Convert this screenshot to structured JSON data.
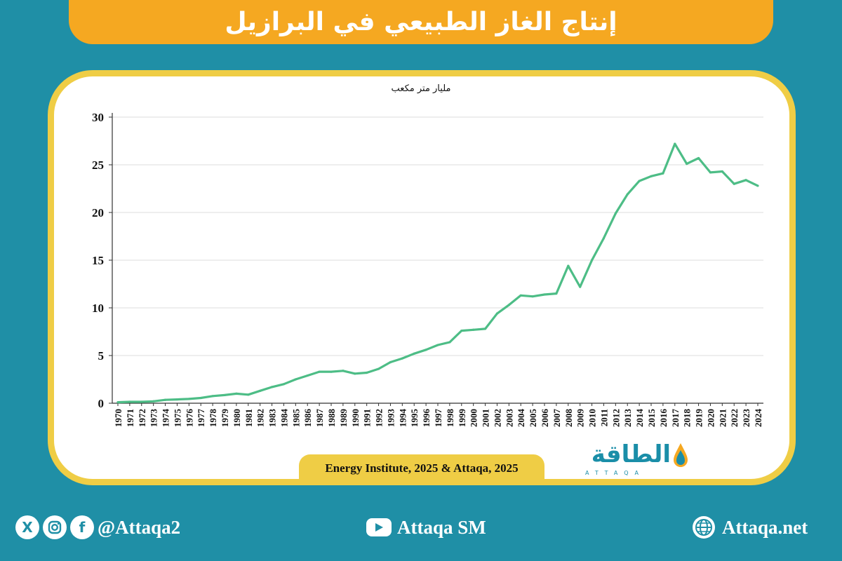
{
  "header": {
    "title": "إنتاج الغاز الطبيعي في البرازيل"
  },
  "chart_data": {
    "type": "line",
    "unit_label": "مليار متر مكعب",
    "x": [
      "1970",
      "1971",
      "1972",
      "1973",
      "1974",
      "1975",
      "1976",
      "1977",
      "1978",
      "1979",
      "1980",
      "1981",
      "1982",
      "1983",
      "1984",
      "1985",
      "1986",
      "1987",
      "1988",
      "1989",
      "1990",
      "1991",
      "1992",
      "1993",
      "1994",
      "1995",
      "1996",
      "1997",
      "1998",
      "1999",
      "2000",
      "2001",
      "2002",
      "2003",
      "2004",
      "2005",
      "2006",
      "2007",
      "2008",
      "2009",
      "2010",
      "2011",
      "2012",
      "2013",
      "2014",
      "2015",
      "2016",
      "2017",
      "2018",
      "2019",
      "2020",
      "2021",
      "2022",
      "2023",
      "2024"
    ],
    "series": [
      {
        "values": [
          0.1,
          0.15,
          0.15,
          0.2,
          0.35,
          0.4,
          0.45,
          0.55,
          0.75,
          0.85,
          1.0,
          0.9,
          1.3,
          1.7,
          2.0,
          2.5,
          2.9,
          3.3,
          3.3,
          3.4,
          3.1,
          3.2,
          3.6,
          4.3,
          4.7,
          5.2,
          5.6,
          6.1,
          6.4,
          7.6,
          7.7,
          7.8,
          9.4,
          10.3,
          11.3,
          11.2,
          11.4,
          11.5,
          14.4,
          12.2,
          15.0,
          17.3,
          19.9,
          21.9,
          23.3,
          23.8,
          24.1,
          27.2,
          25.1,
          25.7,
          24.2,
          24.3,
          23.0,
          23.4,
          22.8
        ]
      }
    ],
    "ylim": [
      0,
      30
    ],
    "yticks": [
      0,
      5,
      10,
      15,
      20,
      25,
      30
    ],
    "grid": true,
    "line_color": "#4dbd86"
  },
  "source": "Energy Institute, 2025 & Attaqa, 2025",
  "logo": {
    "text": "الطاقة",
    "sub": "ATTAQA"
  },
  "footer": {
    "social_handle": "@Attaqa2",
    "youtube_handle": "Attaqa SM",
    "website": "Attaqa.net",
    "icons": [
      "x-icon",
      "instagram-icon",
      "facebook-icon",
      "youtube-icon",
      "globe-icon"
    ]
  }
}
